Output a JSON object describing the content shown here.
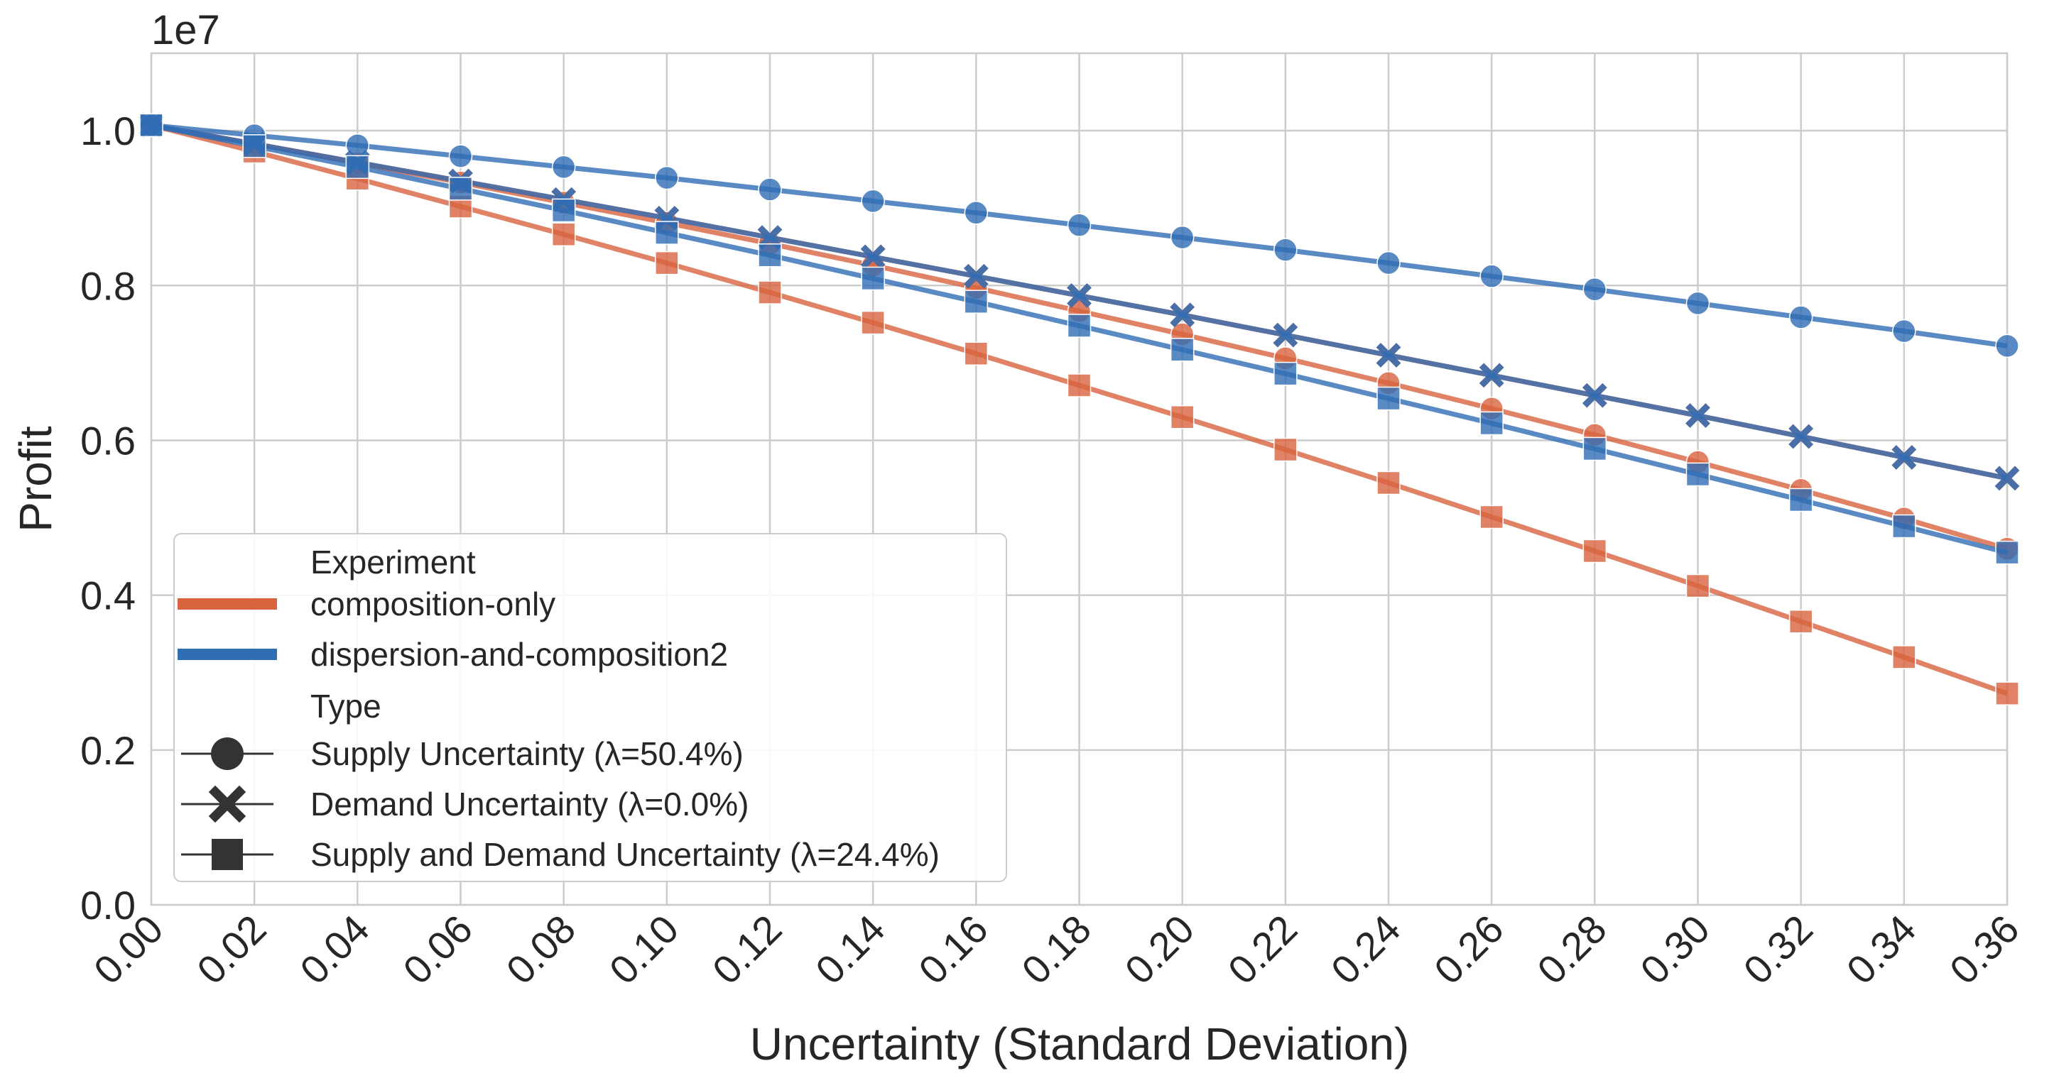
{
  "chart_data": {
    "type": "line",
    "title": "",
    "xlabel": "Uncertainty (Standard Deviation)",
    "ylabel": "Profit",
    "offset_label": "1e7",
    "xlim": [
      0,
      0.36
    ],
    "ylim": [
      0,
      1.1
    ],
    "y_scale_note": "values in units of 1e7",
    "x_ticks": [
      "0.00",
      "0.02",
      "0.04",
      "0.06",
      "0.08",
      "0.10",
      "0.12",
      "0.14",
      "0.16",
      "0.18",
      "0.20",
      "0.22",
      "0.24",
      "0.26",
      "0.28",
      "0.30",
      "0.32",
      "0.34",
      "0.36"
    ],
    "y_ticks": [
      "0.0",
      "0.2",
      "0.4",
      "0.6",
      "0.8",
      "1.0"
    ],
    "grid": true,
    "x": [
      0,
      0.02,
      0.04,
      0.06,
      0.08,
      0.1,
      0.12,
      0.14,
      0.16,
      0.18,
      0.2,
      0.22,
      0.24,
      0.26,
      0.28,
      0.3,
      0.32,
      0.34,
      0.36
    ],
    "series": [
      {
        "name": "composition-only — Supply Uncertainty (λ=50.4%)",
        "experiment": "composition-only",
        "marker": "circle",
        "color": "#d8633f",
        "values": [
          1.007,
          0.983,
          0.958,
          0.933,
          0.907,
          0.881,
          0.854,
          0.826,
          0.797,
          0.767,
          0.737,
          0.706,
          0.674,
          0.641,
          0.607,
          0.572,
          0.536,
          0.499,
          0.46
        ]
      },
      {
        "name": "composition-only — Demand Uncertainty (λ=0.0%)",
        "experiment": "composition-only",
        "marker": "x",
        "color": "#d8633f",
        "values": [
          1.007,
          0.983,
          0.959,
          0.935,
          0.911,
          0.887,
          0.862,
          0.837,
          0.812,
          0.787,
          0.762,
          0.736,
          0.71,
          0.684,
          0.658,
          0.632,
          0.605,
          0.578,
          0.551
        ]
      },
      {
        "name": "composition-only — Supply and Demand Uncertainty (λ=24.4%)",
        "experiment": "composition-only",
        "marker": "square",
        "color": "#d8633f",
        "values": [
          1.007,
          0.973,
          0.938,
          0.902,
          0.866,
          0.829,
          0.791,
          0.752,
          0.712,
          0.671,
          0.63,
          0.588,
          0.545,
          0.501,
          0.457,
          0.412,
          0.366,
          0.32,
          0.273
        ]
      },
      {
        "name": "dispersion-and-composition2 — Supply Uncertainty (λ=50.4%)",
        "experiment": "dispersion-and-composition2",
        "marker": "circle",
        "color": "#2f6db5",
        "values": [
          1.007,
          0.994,
          0.981,
          0.967,
          0.953,
          0.939,
          0.924,
          0.909,
          0.894,
          0.878,
          0.862,
          0.846,
          0.829,
          0.812,
          0.795,
          0.777,
          0.759,
          0.741,
          0.722
        ]
      },
      {
        "name": "dispersion-and-composition2 — Demand Uncertainty (λ=0.0%)",
        "experiment": "dispersion-and-composition2",
        "marker": "x",
        "color": "#2f6db5",
        "values": [
          1.007,
          0.983,
          0.959,
          0.935,
          0.911,
          0.887,
          0.862,
          0.837,
          0.812,
          0.787,
          0.762,
          0.736,
          0.71,
          0.684,
          0.658,
          0.632,
          0.605,
          0.578,
          0.551
        ]
      },
      {
        "name": "dispersion-and-composition2 — Supply and Demand Uncertainty (λ=24.4%)",
        "experiment": "dispersion-and-composition2",
        "marker": "square",
        "color": "#2f6db5",
        "values": [
          1.007,
          0.98,
          0.953,
          0.925,
          0.897,
          0.868,
          0.839,
          0.809,
          0.779,
          0.748,
          0.717,
          0.686,
          0.654,
          0.622,
          0.589,
          0.556,
          0.523,
          0.489,
          0.455
        ]
      }
    ],
    "legend": {
      "position": "lower-left",
      "experiment_title": "Experiment",
      "experiments": [
        {
          "label": "composition-only",
          "color": "#d8633f"
        },
        {
          "label": "dispersion-and-composition2",
          "color": "#2f6db5"
        }
      ],
      "type_title": "Type",
      "types": [
        {
          "label": "Supply Uncertainty (λ=50.4%)",
          "marker": "circle"
        },
        {
          "label": "Demand Uncertainty (λ=0.0%)",
          "marker": "x"
        },
        {
          "label": "Supply and Demand Uncertainty (λ=24.4%)",
          "marker": "square"
        }
      ]
    }
  }
}
